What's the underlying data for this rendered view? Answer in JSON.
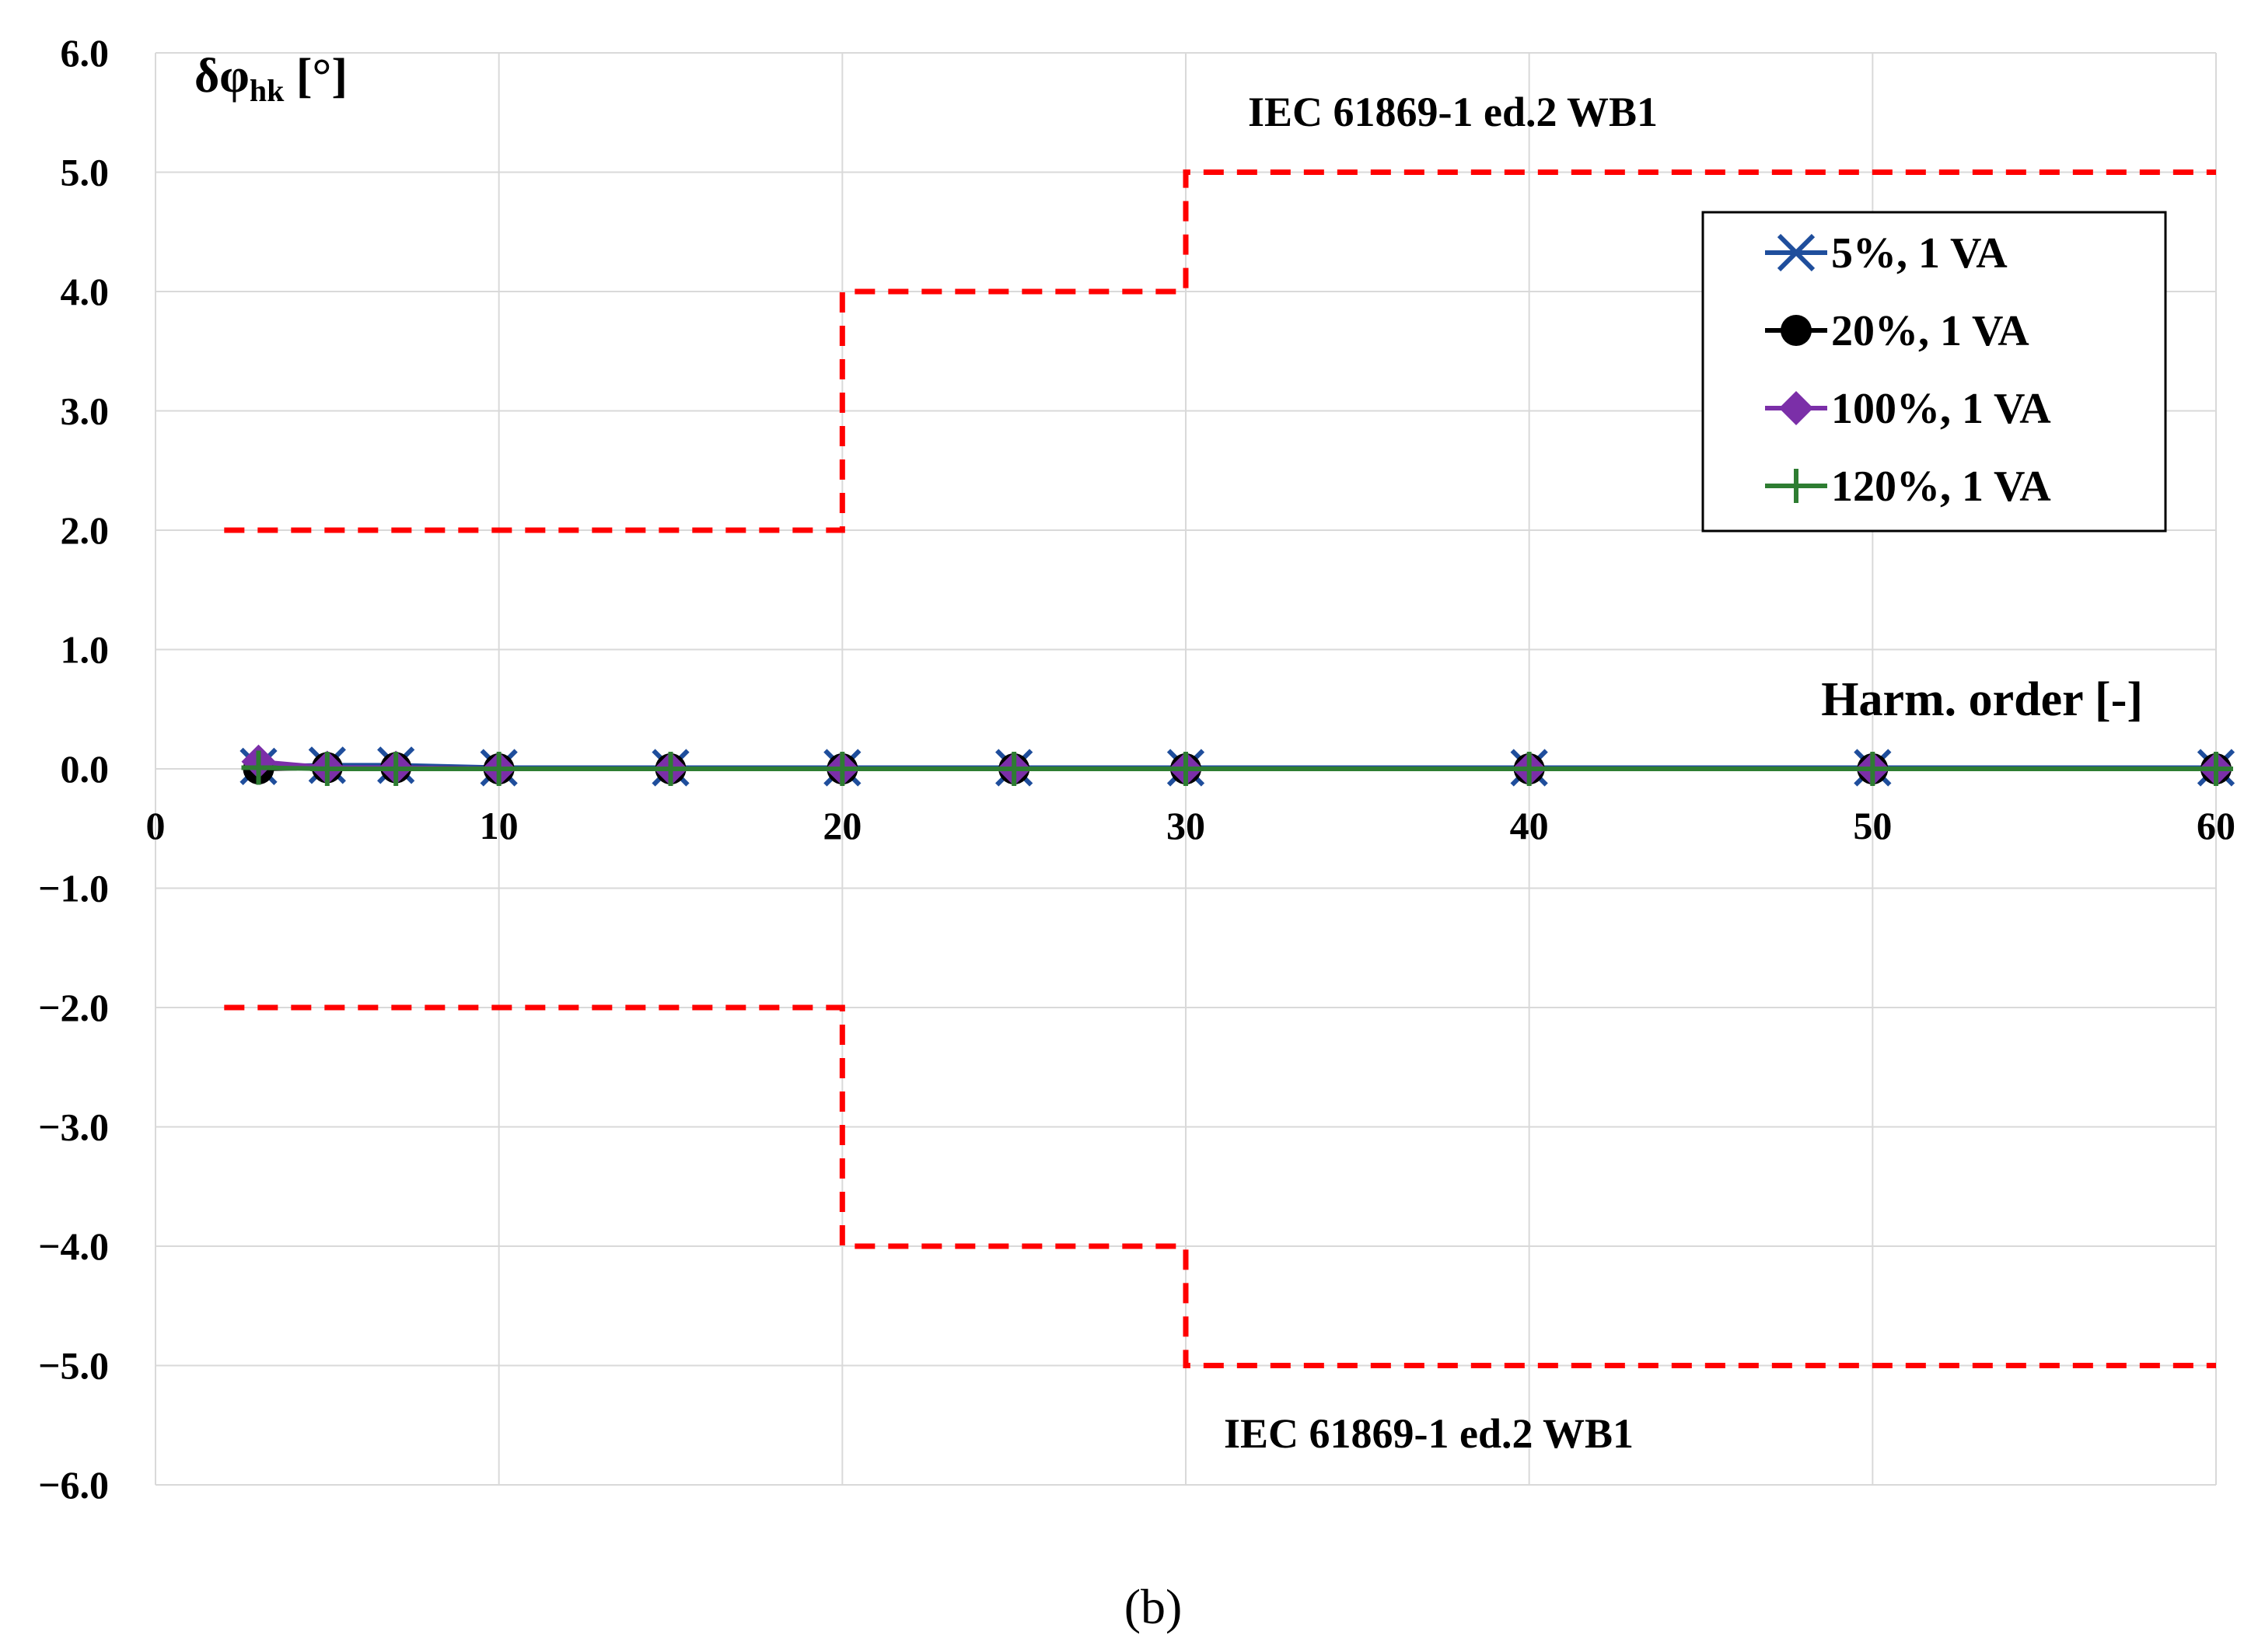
{
  "chart_data": {
    "type": "line",
    "panel_label": "(b)",
    "ylabel": {
      "main": "δφ",
      "sub": "hk",
      "unit": " [°]"
    },
    "xlabel": "Harm. order [-]",
    "xlim": [
      0,
      60
    ],
    "ylim": [
      -6.0,
      6.0
    ],
    "x_ticks": [
      0,
      10,
      20,
      30,
      40,
      50,
      60
    ],
    "x_tick_labels": [
      "0",
      "10",
      "20",
      "30",
      "40",
      "50",
      "60"
    ],
    "y_ticks": [
      6.0,
      5.0,
      4.0,
      3.0,
      2.0,
      1.0,
      0.0,
      -1.0,
      -2.0,
      -3.0,
      -4.0,
      -5.0,
      -6.0
    ],
    "y_tick_labels": [
      "6.0",
      "5.0",
      "4.0",
      "3.0",
      "2.0",
      "1.0",
      "0.0",
      "−1.0",
      "−2.0",
      "−3.0",
      "−4.0",
      "−5.0",
      "−6.0"
    ],
    "grid": true,
    "legend_position": "top-right",
    "x": [
      3,
      5,
      7,
      10,
      15,
      20,
      25,
      30,
      40,
      50,
      60
    ],
    "series": [
      {
        "name": "5%, 1 VA",
        "color": "#1f4e9c",
        "marker": "x",
        "values": [
          0.02,
          0.03,
          0.03,
          0.01,
          0.01,
          0.01,
          0.01,
          0.01,
          0.01,
          0.01,
          0.01
        ]
      },
      {
        "name": "20%, 1 VA",
        "color": "#000000",
        "marker": "circle",
        "values": [
          0.0,
          0.01,
          0.01,
          0.0,
          0.0,
          0.0,
          0.0,
          0.0,
          0.0,
          0.0,
          0.0
        ]
      },
      {
        "name": "100%, 1 VA",
        "color": "#7b2fa8",
        "marker": "diamond",
        "values": [
          0.06,
          0.01,
          0.01,
          0.0,
          0.0,
          0.0,
          0.0,
          0.0,
          0.0,
          0.0,
          0.0
        ]
      },
      {
        "name": "120%, 1 VA",
        "color": "#2e7d32",
        "marker": "plus",
        "values": [
          0.01,
          0.0,
          0.0,
          0.0,
          0.0,
          0.0,
          0.0,
          0.0,
          0.0,
          0.0,
          0.0
        ]
      }
    ],
    "limits": {
      "color": "#ff0000",
      "upper": {
        "x": [
          2,
          20,
          20,
          30,
          30,
          60
        ],
        "y": [
          2.0,
          2.0,
          4.0,
          4.0,
          5.0,
          5.0
        ],
        "label": "IEC 61869-1 ed.2 WB1"
      },
      "lower": {
        "x": [
          2,
          20,
          20,
          30,
          30,
          60
        ],
        "y": [
          -2.0,
          -2.0,
          -4.0,
          -4.0,
          -5.0,
          -5.0
        ],
        "label": "IEC 61869-1 ed.2 WB1"
      }
    }
  }
}
